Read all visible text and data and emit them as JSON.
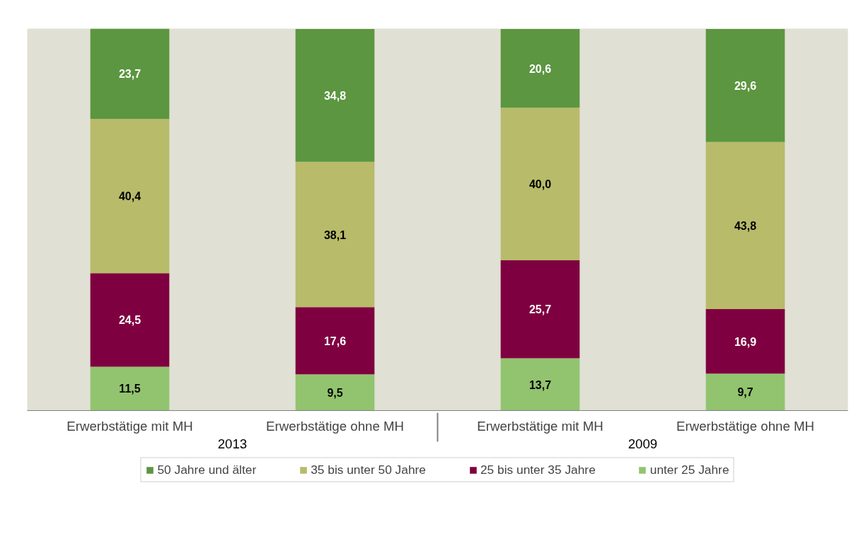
{
  "chart_data": {
    "type": "bar",
    "stacked": true,
    "categories": [
      "Erwerbstätige mit MH",
      "Erwerbstätige ohne MH",
      "Erwerbstätige mit MH",
      "Erwerbstätige ohne MH"
    ],
    "annotations": [
      "2013",
      "2009"
    ],
    "series": [
      {
        "name": "unter 25 Jahre",
        "color": "#92c46f",
        "values": [
          11.5,
          9.5,
          13.7,
          9.7
        ],
        "value_labels": [
          "11,5",
          "9,5",
          "13,7",
          "9,7"
        ]
      },
      {
        "name": "25 bis unter 35 Jahre",
        "color": "#7f0040",
        "values": [
          24.5,
          17.6,
          25.7,
          16.9
        ],
        "value_labels": [
          "24,5",
          "17,6",
          "25,7",
          "16,9"
        ]
      },
      {
        "name": "35 bis unter 50 Jahre",
        "color": "#b8bb69",
        "values": [
          40.4,
          38.1,
          40.0,
          43.8
        ],
        "value_labels": [
          "40,4",
          "38,1",
          "40,0",
          "43,8"
        ]
      },
      {
        "name": "50 Jahre und älter",
        "color": "#5c9640",
        "values": [
          23.7,
          34.8,
          20.6,
          29.6
        ],
        "value_labels": [
          "23,7",
          "34,8",
          "20,6",
          "29,6"
        ]
      }
    ],
    "legend": "bottom",
    "grid": false
  }
}
